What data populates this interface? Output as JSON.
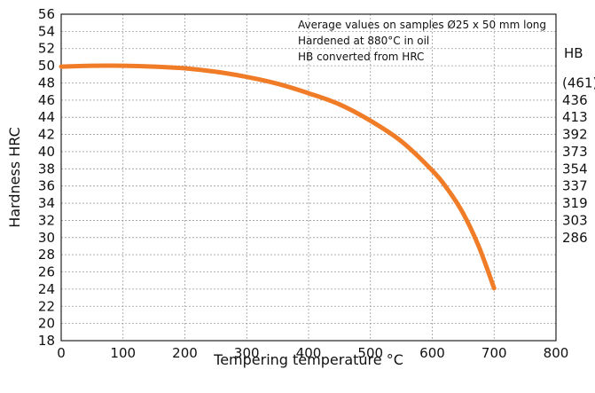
{
  "chart_data": {
    "type": "line",
    "xlabel": "Tempering temperature °C",
    "ylabel": "Hardness HRC",
    "xlim": [
      0,
      800
    ],
    "ylim": [
      18,
      56
    ],
    "x_ticks": [
      "0",
      "100",
      "200",
      "300",
      "400",
      "500",
      "600",
      "700",
      "800"
    ],
    "y_ticks": [
      "18",
      "20",
      "22",
      "24",
      "26",
      "28",
      "30",
      "32",
      "34",
      "36",
      "38",
      "40",
      "42",
      "44",
      "46",
      "48",
      "50",
      "52",
      "54",
      "56"
    ],
    "grid": true,
    "notes": [
      "Average values on samples Ø25 x 50 mm long",
      "Hardened at 880°C in oil",
      "HB converted from HRC"
    ],
    "secondary_axis": {
      "title": "HB",
      "labels": [
        {
          "hrc": 48,
          "label": "(461)"
        },
        {
          "hrc": 46,
          "label": "436"
        },
        {
          "hrc": 44,
          "label": "413"
        },
        {
          "hrc": 42,
          "label": "392"
        },
        {
          "hrc": 40,
          "label": "373"
        },
        {
          "hrc": 38,
          "label": "354"
        },
        {
          "hrc": 36,
          "label": "337"
        },
        {
          "hrc": 34,
          "label": "319"
        },
        {
          "hrc": 32,
          "label": "303"
        },
        {
          "hrc": 30,
          "label": "286"
        }
      ]
    },
    "series": [
      {
        "color": "#f07c27",
        "x": [
          0,
          50,
          100,
          150,
          200,
          250,
          300,
          350,
          400,
          450,
          500,
          550,
          600,
          625,
          650,
          675,
          700
        ],
        "y": [
          49.9,
          50.0,
          50.0,
          49.9,
          49.7,
          49.3,
          48.7,
          47.9,
          46.8,
          45.5,
          43.6,
          41.2,
          37.8,
          35.6,
          32.8,
          29.0,
          24.1
        ]
      }
    ]
  }
}
